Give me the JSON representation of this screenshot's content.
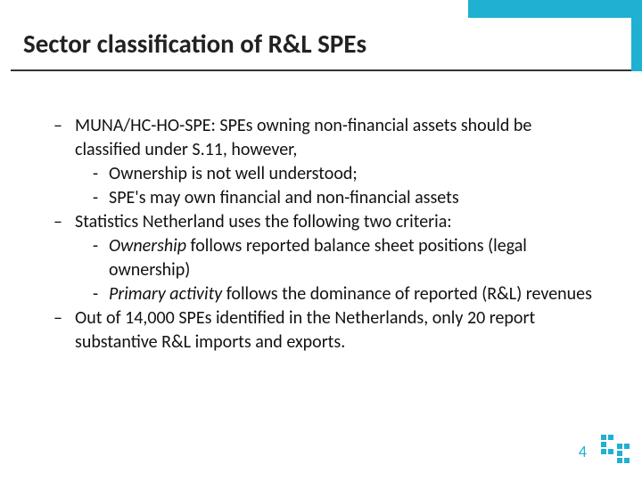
{
  "colors": {
    "accent": "#1fb0d2",
    "text": "#111111",
    "title": "#222222",
    "border": "#333333",
    "background": "#ffffff"
  },
  "title": "Sector classification of R&L SPEs",
  "bullets": [
    {
      "level": 1,
      "text": "MUNA/HC-HO-SPE: SPEs owning non-financial assets should be classified under S.11, however,"
    },
    {
      "level": 2,
      "text": "Ownership is not well understood;"
    },
    {
      "level": 2,
      "text": "SPE's may own financial and non-financial assets"
    },
    {
      "level": 1,
      "text": "Statistics Netherland uses the following two criteria:"
    },
    {
      "level": 2,
      "html": "<span class=\"italic\">Ownership</span> follows reported balance sheet positions (legal ownership)"
    },
    {
      "level": 2,
      "html": "<span class=\"italic\">Primary activity</span> follows the dominance of reported (R&L) revenues"
    },
    {
      "level": 1,
      "text": "Out of 14,000 SPEs identified in the Netherlands, only 20 report substantive R&L imports and exports."
    }
  ],
  "pageNumber": "4"
}
